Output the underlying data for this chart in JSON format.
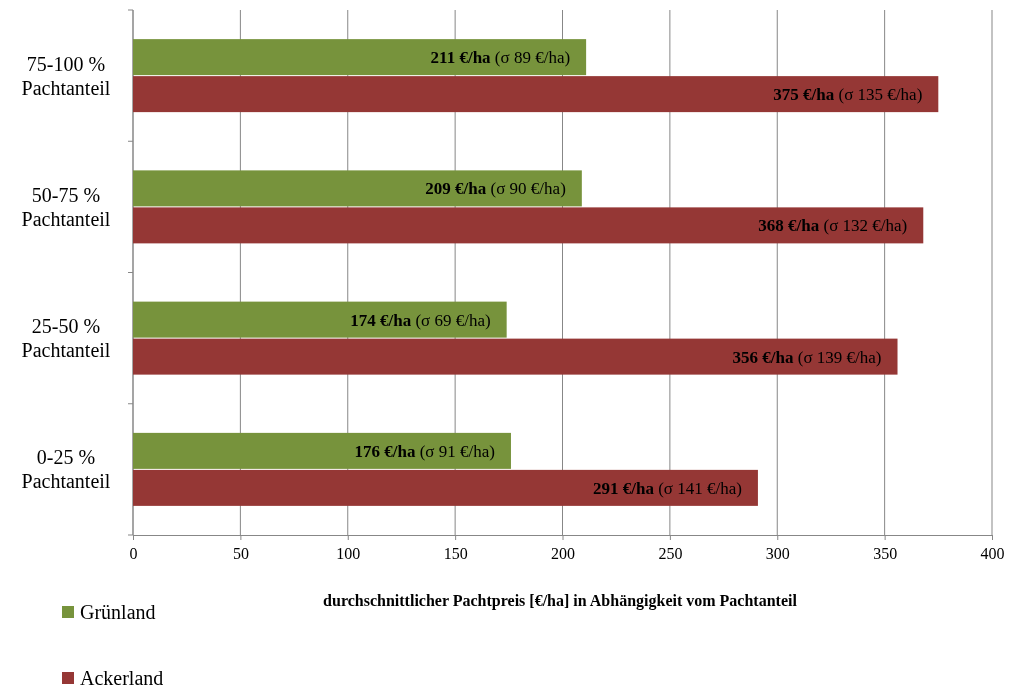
{
  "chart_data": {
    "type": "bar",
    "orientation": "horizontal",
    "xlabel": "durchschnittlicher Pachtpreis [€/ha] in Abhängigkeit vom Pachtanteil",
    "categories": [
      "75-100 %\nPachtanteil",
      "50-75 %\nPachtanteil",
      "25-50 %\nPachtanteil",
      "0-25 %\nPachtanteil"
    ],
    "series": [
      {
        "name": "Grünland",
        "color": "#77933c",
        "values": [
          211,
          209,
          174,
          176
        ],
        "value_labels": [
          "211 €/ha (σ 89 €/ha)",
          "209 €/ha (σ 90 €/ha)",
          "174 €/ha (σ 69 €/ha)",
          "176 €/ha (σ 91 €/ha)"
        ]
      },
      {
        "name": "Ackerland",
        "color": "#953735",
        "values": [
          375,
          368,
          356,
          291
        ],
        "value_labels": [
          "375 €/ha (σ 135 €/ha)",
          "368 €/ha (σ 132 €/ha)",
          "356 €/ha (σ 139 €/ha)",
          "291 €/ha (σ 141 €/ha)"
        ]
      }
    ],
    "xlim": [
      0,
      400
    ],
    "xticks": [
      0,
      50,
      100,
      150,
      200,
      250,
      300,
      350,
      400
    ],
    "grid": "x",
    "legend": "bottom left"
  }
}
